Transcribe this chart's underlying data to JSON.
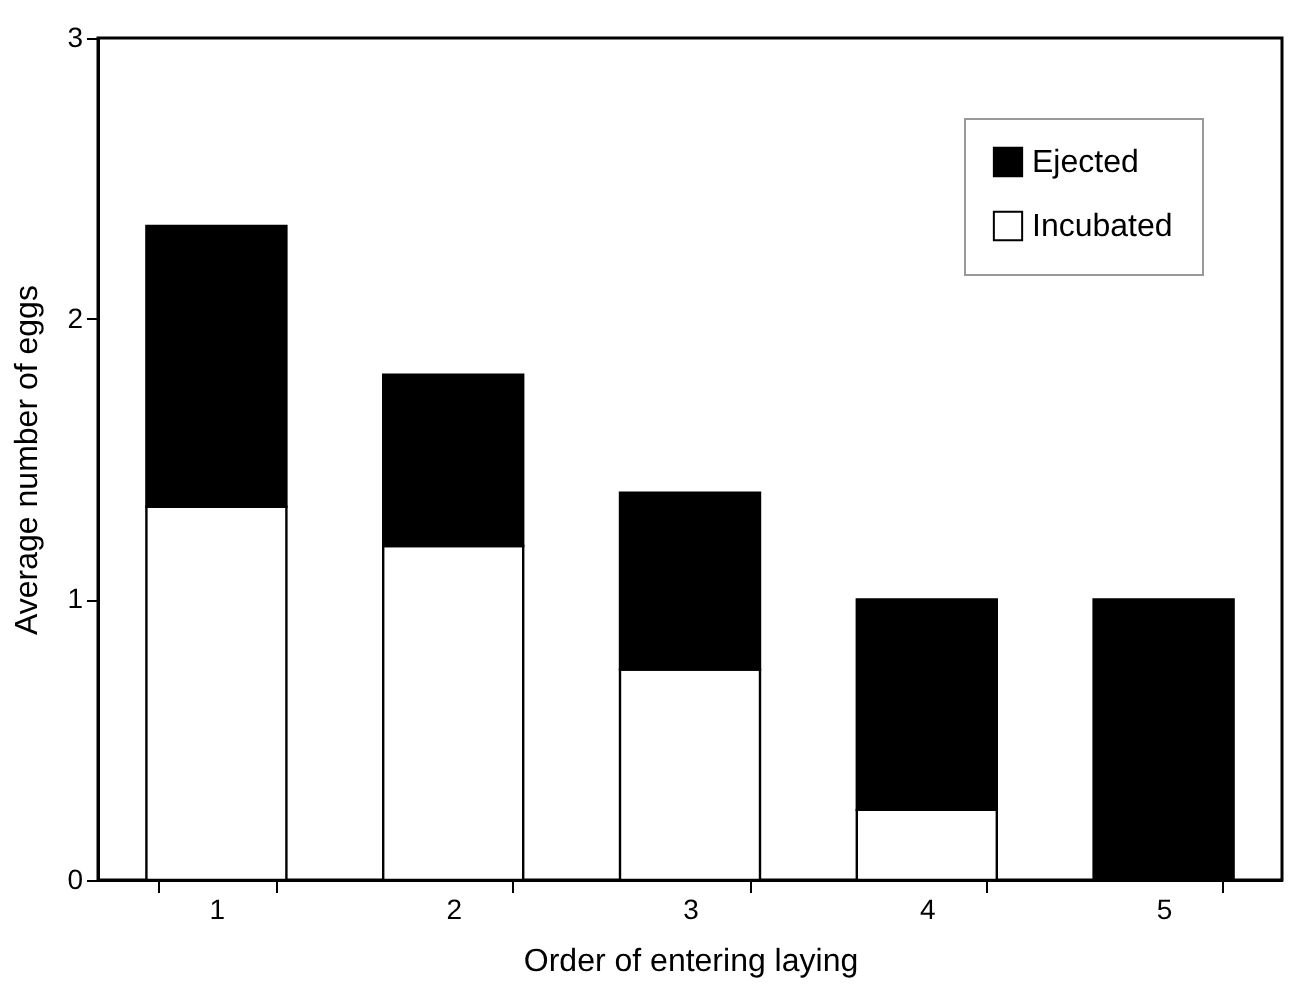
{
  "chart_data": {
    "type": "bar",
    "stacked": true,
    "xlabel": "Order of entering laying",
    "ylabel": "Average number of eggs",
    "categories": [
      "1",
      "2",
      "3",
      "4",
      "5"
    ],
    "series": [
      {
        "name": "Incubated",
        "color": "#ffffff",
        "values": [
          1.33,
          1.19,
          0.75,
          0.25,
          0
        ]
      },
      {
        "name": "Ejected",
        "color": "#000000",
        "values": [
          1.0,
          0.61,
          0.63,
          0.75,
          1.0
        ]
      }
    ],
    "ylim": [
      0,
      3
    ],
    "yticks": [
      0,
      1,
      2,
      3
    ],
    "grid": false,
    "legend": "top right"
  }
}
